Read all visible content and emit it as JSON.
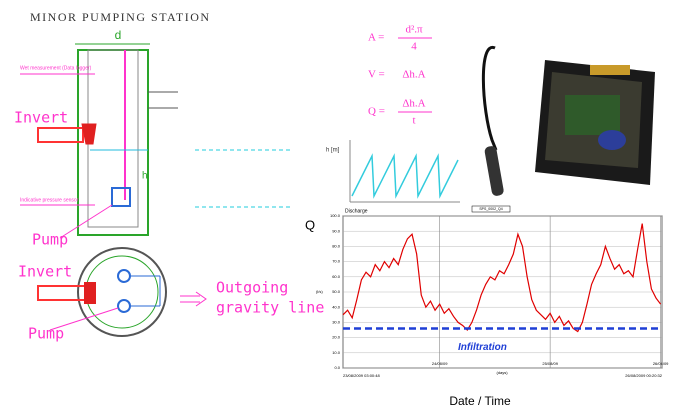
{
  "diagram": {
    "title": "MINOR PUMPING STATION",
    "width_label": "d",
    "height_label": "h",
    "section_invert": "Invert",
    "section_pump": "Pump",
    "logger_label": "Wet measurement (Data logger)",
    "sensor_label": "Indicative pressure sensor",
    "plan_invert": "Invert",
    "plan_pump": "Pump",
    "outgoing_line1": "Outgoing",
    "outgoing_line2": "gravity line"
  },
  "formulas": [
    {
      "lhs": "A =",
      "num": "d².π",
      "den": "4"
    },
    {
      "lhs": "V =",
      "num": "Δh.A"
    },
    {
      "lhs": "Q =",
      "num": "Δh.A",
      "den": "t"
    }
  ],
  "level_plot": {
    "y_label": "h [m]"
  },
  "chart_data": {
    "type": "line",
    "title": "Discharge",
    "side_label": "Q",
    "y_label": "(l/s)",
    "x_label": "(days)",
    "footer": "Date / Time",
    "x": [
      0,
      1,
      2,
      3,
      4,
      5,
      6,
      7,
      8,
      9,
      10,
      11,
      12,
      13,
      14,
      15,
      16,
      17,
      18,
      19,
      20,
      21,
      22,
      23,
      24,
      25,
      26,
      27,
      28,
      29,
      30,
      31,
      32,
      33,
      34,
      35,
      36,
      37,
      38,
      39,
      40,
      41,
      42,
      43,
      44,
      45,
      46,
      47,
      48,
      49,
      50,
      51,
      52,
      53,
      54,
      55,
      56,
      57,
      58,
      59,
      60,
      61,
      62,
      63,
      64,
      65,
      66,
      67,
      68,
      69
    ],
    "series": [
      {
        "name": "SPS_0002_Q4",
        "color": "#e00000",
        "values": [
          35,
          38,
          33,
          45,
          58,
          63,
          60,
          68,
          64,
          70,
          66,
          72,
          68,
          78,
          85,
          88,
          75,
          48,
          40,
          44,
          38,
          42,
          36,
          39,
          34,
          30,
          28,
          25,
          30,
          38,
          48,
          55,
          60,
          58,
          64,
          62,
          68,
          75,
          88,
          80,
          60,
          45,
          38,
          35,
          32,
          36,
          30,
          34,
          28,
          31,
          26,
          24,
          30,
          42,
          55,
          62,
          68,
          80,
          72,
          65,
          68,
          62,
          64,
          60,
          78,
          95,
          70,
          52,
          46,
          42
        ]
      }
    ],
    "reference_line": {
      "value": 26,
      "label": "Infiltration",
      "color": "#1f3fd6"
    },
    "xlim": [
      0,
      69.3
    ],
    "xticks": [
      {
        "value": 0,
        "label": "23/08/2009 03:00:48"
      },
      {
        "value": 21,
        "label": "24/08/09"
      },
      {
        "value": 45,
        "label": "25/08/09"
      },
      {
        "value": 69,
        "label": "26/08/09"
      },
      {
        "value": 69.3,
        "label": "26/08/2009 00:20:32"
      }
    ],
    "ylim": [
      0,
      100
    ],
    "yticks": [
      {
        "value": 0,
        "label": "0.0"
      },
      {
        "value": 10,
        "label": "10.0"
      },
      {
        "value": 20,
        "label": "20.0"
      },
      {
        "value": 30,
        "label": "30.0"
      },
      {
        "value": 40,
        "label": "40.0"
      },
      {
        "value": 50,
        "label": "50.0"
      },
      {
        "value": 60,
        "label": "60.0"
      },
      {
        "value": 70,
        "label": "70.0"
      },
      {
        "value": 80,
        "label": "80.0"
      },
      {
        "value": 90,
        "label": "90.0"
      },
      {
        "value": 100,
        "label": "100.0"
      }
    ],
    "grid": true
  }
}
